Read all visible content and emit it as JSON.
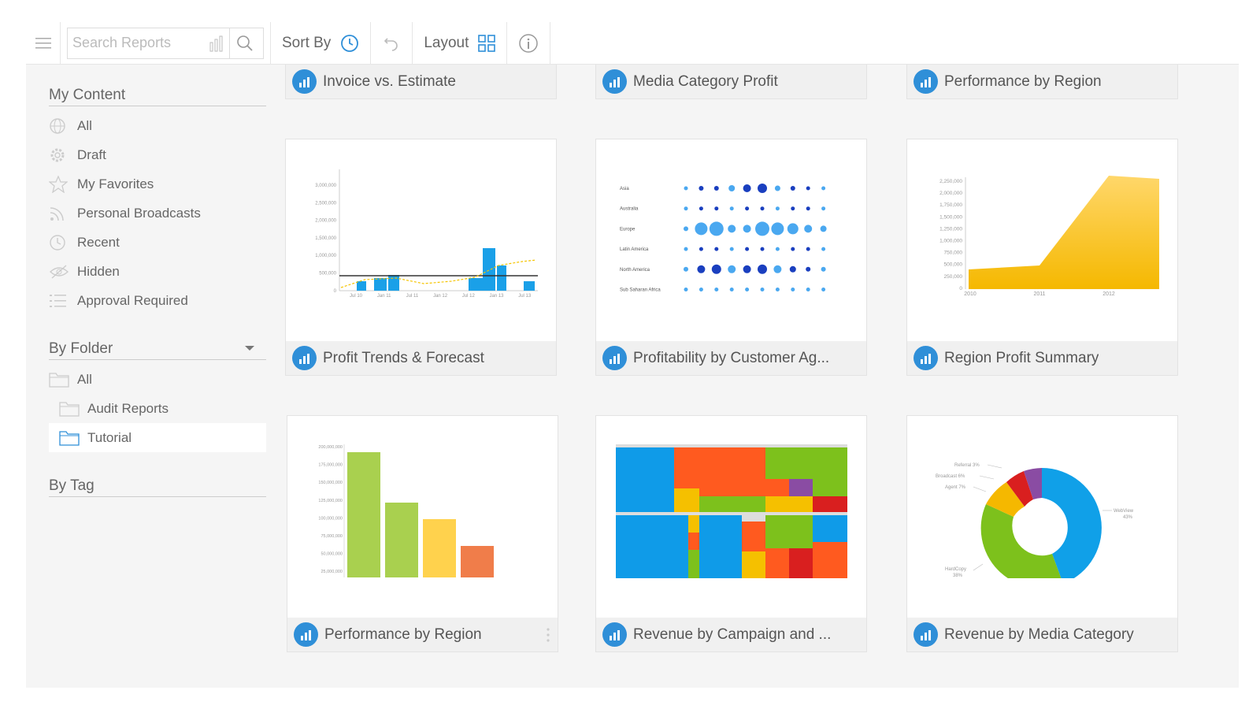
{
  "toolbar": {
    "search_placeholder": "Search Reports",
    "sort_label": "Sort By",
    "layout_label": "Layout"
  },
  "sidebar": {
    "my_content": {
      "title": "My Content",
      "items": [
        {
          "label": "All",
          "icon": "globe-icon"
        },
        {
          "label": "Draft",
          "icon": "gear-icon"
        },
        {
          "label": "My Favorites",
          "icon": "star-icon"
        },
        {
          "label": "Personal Broadcasts",
          "icon": "broadcast-icon"
        },
        {
          "label": "Recent",
          "icon": "clock-icon"
        },
        {
          "label": "Hidden",
          "icon": "eye-off-icon"
        },
        {
          "label": "Approval Required",
          "icon": "list-icon"
        }
      ]
    },
    "by_folder": {
      "title": "By Folder",
      "items": [
        {
          "label": "All",
          "icon": "folder-icon"
        },
        {
          "label": "Audit Reports",
          "icon": "folder-icon"
        },
        {
          "label": "Tutorial",
          "icon": "folder-icon",
          "selected": true
        }
      ]
    },
    "by_tag": {
      "title": "By Tag"
    }
  },
  "reports": [
    {
      "title": "Invoice vs. Estimate"
    },
    {
      "title": "Media Category Profit"
    },
    {
      "title": "Performance by Region"
    },
    {
      "title": "Profit Trends & Forecast"
    },
    {
      "title": "Profitability by Customer Ag..."
    },
    {
      "title": "Region Profit Summary"
    },
    {
      "title": "Performance by Region"
    },
    {
      "title": "Revenue by Campaign and ..."
    },
    {
      "title": "Revenue by Media Category"
    }
  ],
  "thumbnails": {
    "profit_trends": {
      "y_ticks": [
        "3,000,000",
        "2,500,000",
        "2,000,000",
        "1,500,000",
        "1,000,000",
        "500,000",
        "0"
      ],
      "x_ticks": [
        "Jul 10",
        "Jan 11",
        "Jul 11",
        "Jan 12",
        "Jul 12",
        "Jan 13",
        "Jul 13"
      ]
    },
    "profitability": {
      "rows": [
        "Asia",
        "Australia",
        "Europe",
        "Latin America",
        "North America",
        "Sub Saharan Africa"
      ]
    },
    "region_profit": {
      "y_ticks": [
        "2,250,000",
        "2,000,000",
        "1,750,000",
        "1,500,000",
        "1,250,000",
        "1,000,000",
        "750,000",
        "500,000",
        "250,000",
        "0"
      ],
      "x_ticks": [
        "2010",
        "2011",
        "2012"
      ]
    },
    "performance_region": {
      "y_ticks": [
        "200,000,000",
        "175,000,000",
        "150,000,000",
        "125,000,000",
        "100,000,000",
        "75,000,000",
        "50,000,000",
        "25,000,000"
      ]
    },
    "revenue_media": {
      "labels": [
        "Referral 3%",
        "Broadcast 6%",
        "Agent 7%",
        "WebView",
        "43%",
        "HardCopy",
        "38%"
      ]
    }
  },
  "colors": {
    "accent": "#2f8fd8",
    "sidebar_bg": "#f5f5f5"
  }
}
